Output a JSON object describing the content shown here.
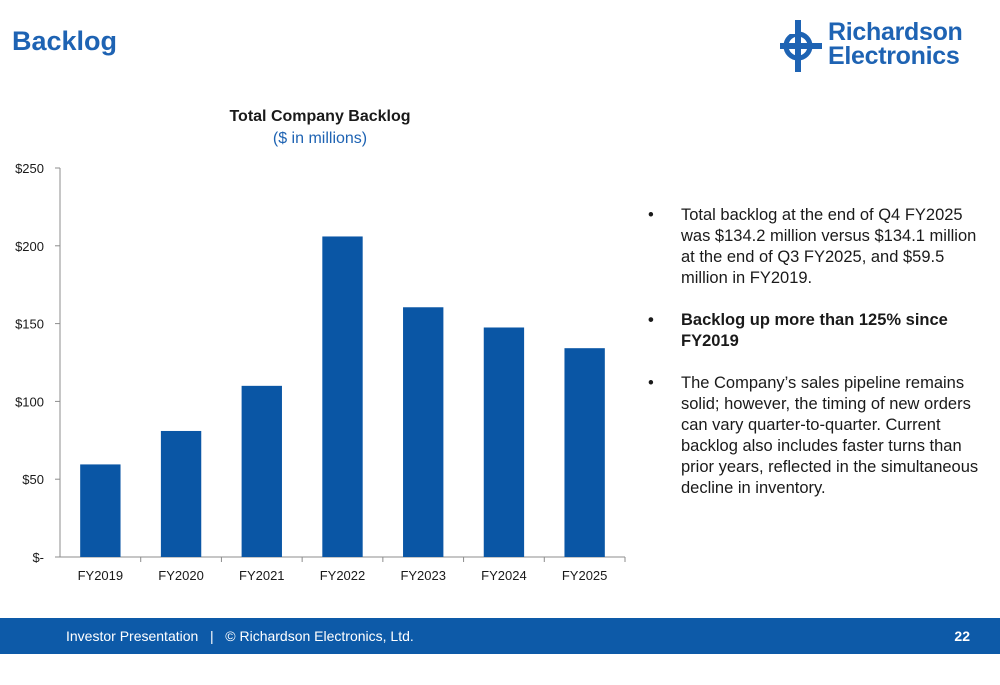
{
  "slide": {
    "title": "Backlog"
  },
  "logo": {
    "line1": "Richardson",
    "line2": "Electronics",
    "icon": "richardson-crosshair-icon"
  },
  "chart_data": {
    "type": "bar",
    "title": "Total Company Backlog",
    "subtitle": "($ in millions)",
    "categories": [
      "FY2019",
      "FY2020",
      "FY2021",
      "FY2022",
      "FY2023",
      "FY2024",
      "FY2025"
    ],
    "values": [
      59.5,
      81,
      110,
      206,
      160.5,
      147.5,
      134.2
    ],
    "ylim": [
      0,
      250
    ],
    "yticks": [
      0,
      50,
      100,
      150,
      200,
      250
    ],
    "ytick_labels": [
      "$-",
      "$50",
      "$100",
      "$150",
      "$200",
      "$250"
    ],
    "grid": false,
    "bar_color": "#0a56a5"
  },
  "bullets": [
    "Total backlog at the end of Q4 FY2025 was $134.2 million versus $134.1 million at the end of Q3 FY2025, and $59.5 million in FY2019.",
    "Backlog up more than 125% since FY2019",
    "The Company’s sales pipeline remains solid; however, the timing of new orders can vary quarter-to-quarter. Current backlog also includes faster turns than prior years, reflected in the simultaneous decline in inventory."
  ],
  "footer": {
    "text": "Investor Presentation   |   © Richardson Electronics, Ltd.",
    "page": "22"
  },
  "colors": {
    "brand_blue": "#1e63b3",
    "footer_bg": "#0d5aa8"
  }
}
